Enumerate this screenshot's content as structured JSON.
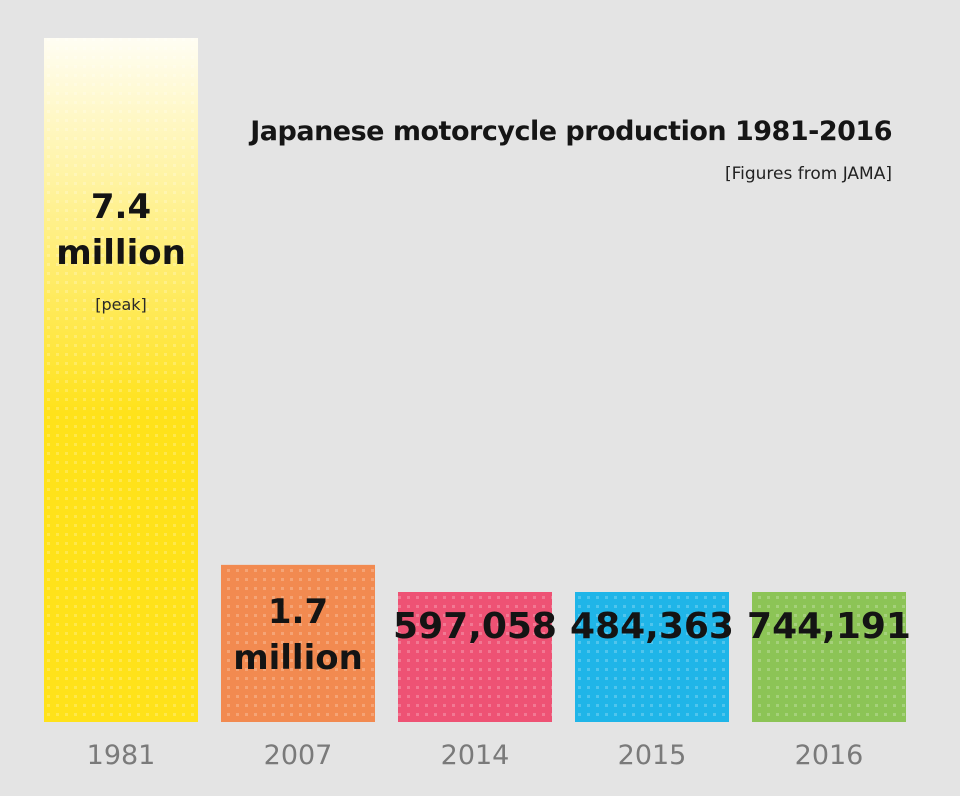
{
  "chart_data": {
    "type": "bar",
    "title": "Japanese motorcycle production 1981-2016",
    "subtitle": "[Figures from JAMA]",
    "categories": [
      "1981",
      "2007",
      "2014",
      "2015",
      "2016"
    ],
    "values": [
      7400000,
      1700000,
      597058,
      484363,
      744191
    ],
    "data_labels": [
      [
        "7.4",
        "million",
        "[peak]"
      ],
      [
        "1.7",
        "million"
      ],
      [
        "597,058"
      ],
      [
        "484,363"
      ],
      [
        "744,191"
      ]
    ],
    "colors": [
      "#ffe21a",
      "#f28a50",
      "#ee5274",
      "#1fb5e8",
      "#8cc456"
    ],
    "background": "#e4e4e4",
    "grid": false,
    "legend": "none"
  }
}
